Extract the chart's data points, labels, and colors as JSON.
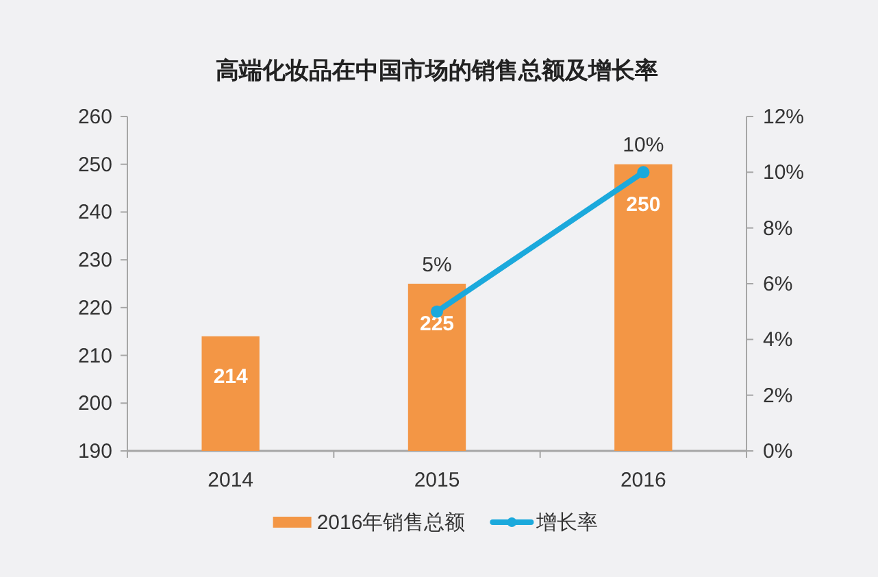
{
  "chart_data": {
    "type": "bar",
    "title": "高端化妆品在中国市场的销售总额及增长率",
    "categories": [
      "2014",
      "2015",
      "2016"
    ],
    "series": [
      {
        "name": "2016年销售总额",
        "color": "#f39645",
        "values": [
          214,
          225,
          250
        ],
        "value_labels": [
          "214",
          "225",
          "250"
        ]
      },
      {
        "name": "增长率",
        "type": "line",
        "axis": "y2",
        "color": "#1ba9dc",
        "marker": "circle",
        "line_style": "solid",
        "values": [
          null,
          5,
          10
        ],
        "value_labels": [
          null,
          "5%",
          "10%"
        ]
      }
    ],
    "ylim": [
      190,
      260
    ],
    "yticks": [
      190,
      200,
      210,
      220,
      230,
      240,
      250,
      260
    ],
    "y2lim": [
      0,
      12
    ],
    "y2ticks": [
      {
        "value": 0,
        "label": "0%"
      },
      {
        "value": 2,
        "label": "2%"
      },
      {
        "value": 4,
        "label": "4%"
      },
      {
        "value": 6,
        "label": "6%"
      },
      {
        "value": 8,
        "label": "8%"
      },
      {
        "value": 10,
        "label": "10%"
      },
      {
        "value": 12,
        "label": "12%"
      }
    ],
    "legend": "bottom"
  }
}
